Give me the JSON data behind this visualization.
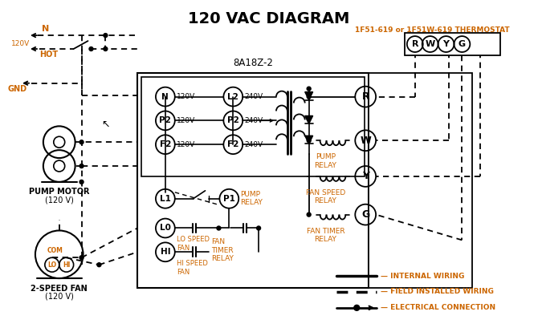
{
  "title": "120 VAC DIAGRAM",
  "title_color": "#000000",
  "title_fontsize": 14,
  "background_color": "#ffffff",
  "line_color": "#000000",
  "orange_color": "#cc6600",
  "thermostat_label": "1F51-619 or 1F51W-619 THERMOSTAT",
  "control_box_label": "8A18Z-2",
  "thermostat_terminals": [
    "R",
    "W",
    "Y",
    "G"
  ],
  "left_terminals": [
    "N",
    "P2",
    "F2"
  ],
  "left_voltages": [
    "120V",
    "120V",
    "120V"
  ],
  "right_terminals": [
    "L2",
    "P2",
    "F2"
  ],
  "right_voltages": [
    "240V",
    "240V",
    "240V"
  ],
  "relay_labels": [
    "R",
    "W",
    "Y",
    "G"
  ],
  "relay_coil_labels": [
    "",
    "PUMP\nRELAY",
    "FAN SPEED\nRELAY",
    "FAN TIMER\nRELAY"
  ]
}
